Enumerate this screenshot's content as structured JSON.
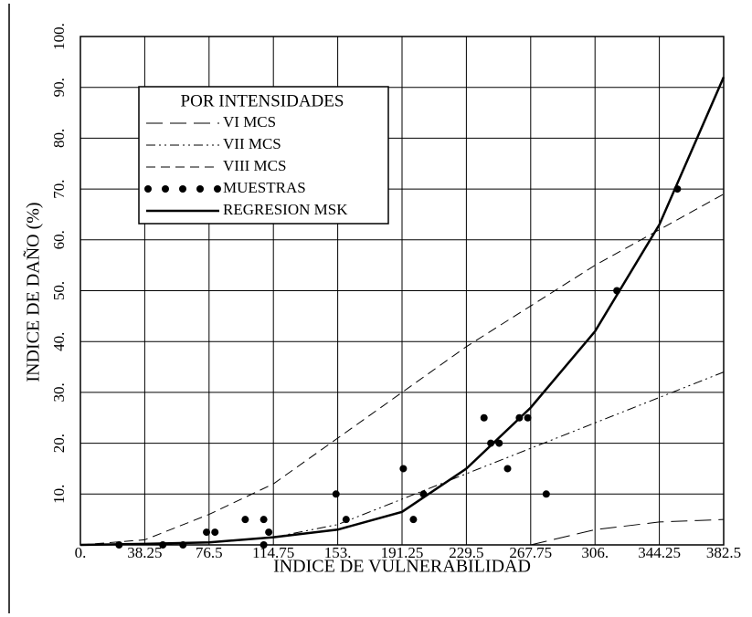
{
  "chart_data": {
    "type": "line",
    "legend_title": "POR INTENSIDADES",
    "x_label": "INDICE DE VULNERABILIDAD",
    "y_label": "INDICE DE DAÑO (%)",
    "xlim": [
      0,
      382.5
    ],
    "ylim": [
      0,
      100
    ],
    "xticks": [
      {
        "value": 0,
        "label": "0."
      },
      38.25,
      76.5,
      114.75,
      {
        "value": 153,
        "label": "153."
      },
      191.25,
      229.5,
      267.75,
      {
        "value": 306,
        "label": "306."
      },
      344.25,
      382.5
    ],
    "yticks": [
      {
        "value": 10,
        "label": "10."
      },
      {
        "value": 20,
        "label": "20."
      },
      {
        "value": 30,
        "label": "30."
      },
      {
        "value": 40,
        "label": "40."
      },
      {
        "value": 50,
        "label": "50."
      },
      {
        "value": 60,
        "label": "60."
      },
      {
        "value": 70,
        "label": "70."
      },
      {
        "value": 80,
        "label": "80."
      },
      {
        "value": 90,
        "label": "90."
      },
      {
        "value": 100,
        "label": "100."
      }
    ],
    "grid": true,
    "legend": "upper left",
    "x": [
      0,
      38.25,
      76.5,
      114.75,
      153,
      191.25,
      229.5,
      267.75,
      306,
      344.25,
      382.5
    ],
    "series": [
      {
        "name": "VI MCS",
        "type": "line",
        "style": "long-dash",
        "color": "#000000",
        "values": [
          null,
          null,
          null,
          null,
          null,
          null,
          null,
          0,
          3,
          4.5,
          5
        ]
      },
      {
        "name": "VII MCS",
        "type": "line",
        "style": "dash-dot-dot",
        "color": "#000000",
        "values": [
          0,
          0,
          0.5,
          1.5,
          4,
          9,
          14,
          19,
          24,
          29,
          34
        ]
      },
      {
        "name": "VIII MCS",
        "type": "line",
        "style": "dash",
        "color": "#000000",
        "values": [
          0,
          1,
          6,
          12,
          21,
          30,
          39,
          47,
          55,
          62,
          69
        ]
      },
      {
        "name": "MUESTRAS",
        "type": "scatter",
        "color": "#000000",
        "x": [
          23,
          49,
          61,
          75,
          80,
          98,
          109,
          109,
          112,
          152,
          158,
          192,
          198,
          204,
          240,
          244,
          249,
          254,
          261,
          266,
          277,
          319,
          355
        ],
        "values": [
          0,
          0,
          0,
          2.5,
          2.5,
          5,
          5,
          0,
          2.5,
          10,
          5,
          15,
          5,
          10,
          25,
          20,
          20,
          15,
          25,
          25,
          10,
          50,
          70
        ]
      },
      {
        "name": "REGRESION MSK",
        "type": "line",
        "style": "solid",
        "color": "#000000",
        "values": [
          0,
          0.2,
          0.5,
          1.5,
          3,
          6.5,
          15,
          27,
          42,
          63,
          92
        ]
      }
    ]
  }
}
